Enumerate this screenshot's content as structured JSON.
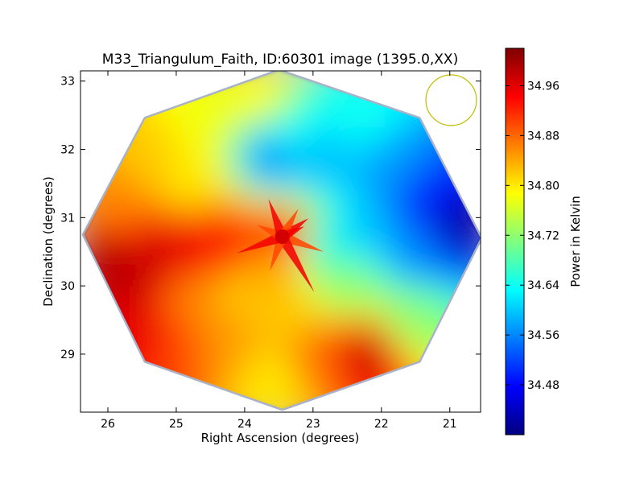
{
  "chart_data": {
    "type": "heatmap",
    "title": "M33_Triangulum_Faith, ID:60301 image (1395.0,XX)",
    "xlabel": "Right Ascension (degrees)",
    "ylabel": "Declination (degrees)",
    "colorbar_label": "Power in Kelvin",
    "x_range": [
      26.4,
      20.55
    ],
    "y_range": [
      28.15,
      33.15
    ],
    "x_ticks": [
      26,
      25,
      24,
      23,
      22,
      21
    ],
    "y_ticks": [
      29,
      30,
      31,
      32,
      33
    ],
    "colorbar_range": [
      34.4,
      35.02
    ],
    "colorbar_ticks": [
      "34.48",
      "34.56",
      "34.64",
      "34.72",
      "34.80",
      "34.88",
      "34.96"
    ],
    "colorbar_tick_values": [
      34.48,
      34.56,
      34.64,
      34.72,
      34.8,
      34.88,
      34.96
    ],
    "colormap": [
      "#00007f",
      "#0000ff",
      "#007fff",
      "#00ffff",
      "#7fff7f",
      "#ffff00",
      "#ff7f00",
      "#ff0000",
      "#7f0000"
    ],
    "footprint_vertices": [
      [
        26.35,
        30.75
      ],
      [
        25.45,
        32.45
      ],
      [
        23.5,
        33.15
      ],
      [
        21.45,
        32.45
      ],
      [
        20.55,
        30.7
      ],
      [
        21.45,
        28.9
      ],
      [
        23.45,
        28.2
      ],
      [
        25.45,
        28.9
      ]
    ],
    "beam_circle": {
      "ra": 20.98,
      "dec": 32.72,
      "radius_deg": 0.37,
      "color": "#bfbf00"
    },
    "grid": false,
    "legend": "none",
    "field_samples": [
      {
        "ra": 26.1,
        "dec": 30.4,
        "value": 34.99
      },
      {
        "ra": 25.6,
        "dec": 30.1,
        "value": 34.98
      },
      {
        "ra": 25.5,
        "dec": 29.3,
        "value": 34.96
      },
      {
        "ra": 25.2,
        "dec": 30.5,
        "value": 34.97
      },
      {
        "ra": 24.6,
        "dec": 30.6,
        "value": 34.95
      },
      {
        "ra": 24.2,
        "dec": 30.6,
        "value": 34.92
      },
      {
        "ra": 25.9,
        "dec": 31.2,
        "value": 34.86
      },
      {
        "ra": 25.4,
        "dec": 31.9,
        "value": 34.82
      },
      {
        "ra": 24.8,
        "dec": 31.5,
        "value": 34.8
      },
      {
        "ra": 24.6,
        "dec": 32.4,
        "value": 34.78
      },
      {
        "ra": 23.8,
        "dec": 32.8,
        "value": 34.79
      },
      {
        "ra": 23.3,
        "dec": 32.2,
        "value": 34.64
      },
      {
        "ra": 22.9,
        "dec": 31.9,
        "value": 34.59
      },
      {
        "ra": 23.6,
        "dec": 31.9,
        "value": 34.56
      },
      {
        "ra": 22.3,
        "dec": 32.5,
        "value": 34.64
      },
      {
        "ra": 21.8,
        "dec": 31.7,
        "value": 34.57
      },
      {
        "ra": 21.4,
        "dec": 31.3,
        "value": 34.5
      },
      {
        "ra": 20.9,
        "dec": 30.9,
        "value": 34.42
      },
      {
        "ra": 21.5,
        "dec": 30.5,
        "value": 34.56
      },
      {
        "ra": 22.3,
        "dec": 30.8,
        "value": 34.6
      },
      {
        "ra": 22.9,
        "dec": 30.6,
        "value": 34.65
      },
      {
        "ra": 23.4,
        "dec": 30.7,
        "value": 34.93
      },
      {
        "ra": 23.6,
        "dec": 30.3,
        "value": 34.84
      },
      {
        "ra": 22.5,
        "dec": 30.0,
        "value": 34.72
      },
      {
        "ra": 21.6,
        "dec": 29.5,
        "value": 34.72
      },
      {
        "ra": 22.2,
        "dec": 29.05,
        "value": 34.98
      },
      {
        "ra": 22.9,
        "dec": 29.0,
        "value": 34.88
      },
      {
        "ra": 23.4,
        "dec": 29.5,
        "value": 34.82
      },
      {
        "ra": 23.6,
        "dec": 28.6,
        "value": 34.8
      },
      {
        "ra": 24.3,
        "dec": 29.2,
        "value": 34.85
      },
      {
        "ra": 24.8,
        "dec": 29.8,
        "value": 34.86
      },
      {
        "ra": 24.1,
        "dec": 29.9,
        "value": 34.82
      },
      {
        "ra": 25.0,
        "dec": 29.1,
        "value": 34.9
      }
    ]
  }
}
